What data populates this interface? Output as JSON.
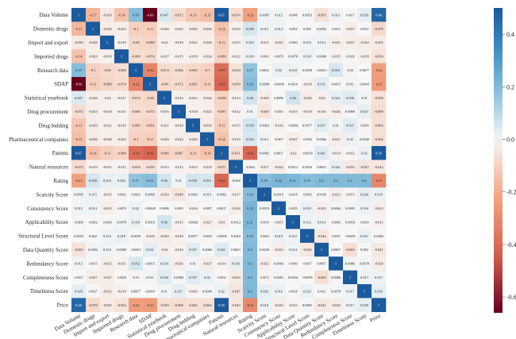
{
  "chart_data": {
    "type": "heatmap",
    "labels": [
      "Data Volume",
      "Domestic drugs",
      "Import and export",
      "Imported drugs",
      "Research data",
      "SDAP",
      "Statistical yearbook",
      "Drug procurement",
      "Drug bidding",
      "Pharmaceutical companies",
      "Patents",
      "Natural resources",
      "Rating",
      "Scarcity Score",
      "Consistency Score",
      "Applicability Score",
      "Structural Level Score",
      "Data Quantity Score",
      "Redundancy Score",
      "Completeness Score",
      "Timeliness Score",
      "Price"
    ],
    "matrix": [
      [
        "1",
        "-0.17",
        "-0.039",
        "-0.14",
        "0.19",
        "-0.66",
        "0.047",
        "-0.072",
        "-0.13",
        "-0.15",
        "0.67",
        "-0.074",
        "-0.23",
        "0.0095",
        "0.012",
        "-0.008",
        "0.0053",
        "-0.055",
        "0.013",
        "-0.0017",
        "0.029",
        "0.46"
      ],
      [
        "-0.17",
        "1",
        "-0.028",
        "-0.024",
        "-0.1",
        "-0.11",
        "-0.026",
        "-0.023",
        "-0.029",
        "-0.036",
        "-0.14",
        "-0.019",
        "0.056",
        "0.015",
        "0.014",
        "-0.002",
        "0.002",
        "0.0092",
        "-0.0015",
        "-0.027",
        "-0.0027",
        "-0.079"
      ],
      [
        "-0.039",
        "-0.028",
        "1",
        "-0.018",
        "-0.08",
        "-0.088",
        "-0.02",
        "-0.018",
        "-0.022",
        "-0.028",
        "-0.11",
        "-0.015",
        "0.023",
        "-0.015",
        "-0.025",
        "-0.0064",
        "0.013",
        "0.014",
        "-0.025",
        "-0.027",
        "-0.032",
        "-0.035"
      ],
      [
        "-0.14",
        "-0.024",
        "-0.018",
        "1",
        "-0.068",
        "-0.074",
        "-0.017",
        "-0.015",
        "-0.019",
        "-0.024",
        "-0.089",
        "-0.012",
        "0.019",
        "-0.0063",
        "-0.0078",
        "0.0078",
        "0.018",
        "0.0068",
        "-0.015",
        "-0.0028",
        "-0.018",
        "-0.054"
      ],
      [
        "0.19",
        "-0.1",
        "-0.08",
        "-0.068",
        "1",
        "-0.32",
        "-0.074",
        "-0.066",
        "-0.083",
        "-0.1",
        "-0.39",
        "-0.054",
        "0.17",
        "0.00022",
        "0.02",
        "0.018",
        "0.0039",
        "-0.00015",
        "0.052",
        "-0.01",
        "0.00077",
        "-0.24"
      ],
      [
        "-0.66",
        "-0.11",
        "-0.088",
        "-0.074",
        "-0.32",
        "1",
        "-0.08",
        "-0.072",
        "-0.091",
        "-0.11",
        "-0.42",
        "-0.059",
        "0.19",
        "0.0099",
        "-0.00048",
        "0.0016",
        "-0.018",
        "0.031",
        "-0.00071",
        "0.011",
        "-0.00047",
        "-0.25"
      ],
      [
        "0.047",
        "-0.026",
        "-0.02",
        "-0.017",
        "-0.074",
        "-0.08",
        "1",
        "-0.016",
        "-0.021",
        "-0.026",
        "-0.096",
        "-0.013",
        "0.06",
        "-0.029",
        "0.00096",
        "0.06",
        "-0.029",
        "-0.02",
        "0.024",
        "0.036",
        "0.01",
        "-0.059"
      ],
      [
        "-0.072",
        "-0.023",
        "-0.018",
        "-0.015",
        "-0.066",
        "-0.072",
        "-0.016",
        "1",
        "-0.018",
        "-0.023",
        "-0.087",
        "-0.012",
        "0.01",
        "-0.049",
        "-0.0065",
        "-0.015",
        "-0.018",
        "-0.016",
        "-0.026",
        "0.0069",
        "0.027",
        "-0.069"
      ],
      [
        "-0.13",
        "-0.029",
        "-0.022",
        "-0.019",
        "-0.083",
        "-0.091",
        "-0.021",
        "-0.018",
        "1",
        "-0.029",
        "-0.11",
        "-0.015",
        "0.059",
        "0.0063",
        "-0.016",
        "-0.00082",
        "0.0077",
        "0.037",
        "0.01",
        "0.037",
        "-0.0093",
        "-0.063"
      ],
      [
        "-0.15",
        "-0.036",
        "-0.028",
        "-0.024",
        "-0.1",
        "-0.11",
        "-0.026",
        "-0.023",
        "-0.029",
        "1",
        "-0.14",
        "-0.019",
        "0.052",
        "0.013",
        "-0.007",
        "-0.027",
        "-0.0056",
        "0.0066",
        "-0.027",
        "0.02",
        "0.0049",
        "-0.062"
      ],
      [
        "0.67",
        "-0.14",
        "-0.11",
        "-0.089",
        "-0.39",
        "-0.42",
        "-0.096",
        "-0.087",
        "-0.11",
        "-0.14",
        "1",
        "-0.071",
        "-0.42",
        "0.0082",
        "0.00017",
        "-0.02",
        "-0.00039",
        "0.041",
        "-0.014",
        "-0.0052",
        "0.02",
        "0.59"
      ],
      [
        "-0.074",
        "-0.019",
        "-0.015",
        "-0.012",
        "-0.054",
        "-0.059",
        "-0.013",
        "-0.012",
        "-0.015",
        "-0.019",
        "-0.071",
        "1",
        "-0.004",
        "-0.017",
        "-0.024",
        "0.0012",
        "0.0016",
        "0.00031",
        "0.026",
        "-0.035",
        "-0.047",
        "-0.043"
      ],
      [
        "-0.23",
        "0.056",
        "0.023",
        "0.024",
        "0.17",
        "0.19",
        "0.06",
        "0.01",
        "0.059",
        "0.052",
        "-0.42",
        "-0.004",
        "1",
        "0.19",
        "0.22",
        "0.21",
        "0.19",
        "0.2",
        "0.2",
        "0.2",
        "0.2",
        "-0.31"
      ],
      [
        "0.0095",
        "0.015",
        "-0.015",
        "-0.0063",
        "0.00022",
        "0.0099",
        "-0.029",
        "-0.049",
        "0.0063",
        "0.013",
        "0.0082",
        "-0.017",
        "0.19",
        "1",
        "0.0019",
        "-0.0018",
        "-0.0063",
        "0.0039",
        "-0.023",
        "-0.0072",
        "0.026",
        "0.018"
      ],
      [
        "0.012",
        "0.014",
        "-0.025",
        "-0.0078",
        "0.02",
        "-0.00048",
        "0.00096",
        "-0.0065",
        "-0.016",
        "-0.007",
        "0.00017",
        "-0.024",
        "0.22",
        "0.0019",
        "1",
        "-0.0055",
        "0.019",
        "-0.023",
        "0.0064",
        "0.0081",
        "0.016",
        "-0.023"
      ],
      [
        "-0.008",
        "-0.002",
        "-0.0064",
        "0.0078",
        "0.018",
        "0.0016",
        "0.06",
        "-0.015",
        "-0.00082",
        "-0.027",
        "-0.02",
        "0.0012",
        "0.21",
        "-0.0018",
        "-0.0055",
        "1",
        "0.012",
        "0.014",
        "-0.0083",
        "0.0054",
        "-0.0026",
        "-0.015"
      ],
      [
        "0.0053",
        "0.002",
        "0.013",
        "0.018",
        "0.0039",
        "-0.018",
        "-0.029",
        "-0.018",
        "0.0077",
        "-0.0056",
        "-0.00039",
        "0.0016",
        "0.19",
        "-0.0063",
        "0.019",
        "0.012",
        "1",
        "-0.042",
        "-0.0037",
        "-0.00095",
        "0.021",
        "0.0065"
      ],
      [
        "-0.055",
        "0.0092",
        "0.014",
        "0.0068",
        "-0.00015",
        "0.031",
        "-0.02",
        "-0.016",
        "0.037",
        "0.0066",
        "0.041",
        "0.00031",
        "0.2",
        "0.0039",
        "-0.023",
        "0.014",
        "-0.042",
        "1",
        "0.00057",
        "-0.065",
        "0.002",
        "-0.041"
      ],
      [
        "0.013",
        "-0.0015",
        "-0.025",
        "-0.015",
        "0.052",
        "-0.00071",
        "0.024",
        "-0.026",
        "0.01",
        "-0.027",
        "-0.014",
        "0.026",
        "0.2",
        "-0.023",
        "0.0064",
        "-0.0083",
        "-0.0037",
        "0.00057",
        "1",
        "0.0086",
        "0.0078",
        "-0.028"
      ],
      [
        "-0.0017",
        "-0.027",
        "-0.027",
        "-0.0028",
        "-0.01",
        "0.011",
        "0.036",
        "0.0069",
        "0.037",
        "0.02",
        "-0.0052",
        "-0.035",
        "0.2",
        "-0.0072",
        "0.0081",
        "0.0054",
        "-0.00095",
        "-0.065",
        "0.0086",
        "1",
        "0.017",
        "0.017"
      ],
      [
        "0.029",
        "-0.0027",
        "-0.032",
        "-0.018",
        "0.00077",
        "-0.00047",
        "0.01",
        "0.027",
        "-0.0093",
        "0.0049",
        "0.02",
        "-0.047",
        "0.2",
        "0.026",
        "0.016",
        "-0.0026",
        "0.021",
        "0.002",
        "0.0078",
        "0.017",
        "1",
        "0.029"
      ],
      [
        "0.46",
        "-0.079",
        "-0.035",
        "-0.054",
        "-0.24",
        "-0.25",
        "-0.059",
        "-0.069",
        "-0.063",
        "-0.062",
        "0.59",
        "-0.043",
        "-0.31",
        "0.018",
        "-0.023",
        "-0.015",
        "0.0065",
        "-0.041",
        "-0.028",
        "0.017",
        "0.029",
        "1"
      ]
    ],
    "colorbar": {
      "min": -0.66,
      "max": 0.5,
      "ticks": [
        "0.4",
        "0.2",
        "0.0",
        "-0.2",
        "-0.4",
        "-0.6"
      ],
      "colors": {
        "negative": "#67001f",
        "mid": "#f7f7f7",
        "positive": "#2166ac",
        "strong_positive": "#1b5a9c"
      }
    }
  }
}
